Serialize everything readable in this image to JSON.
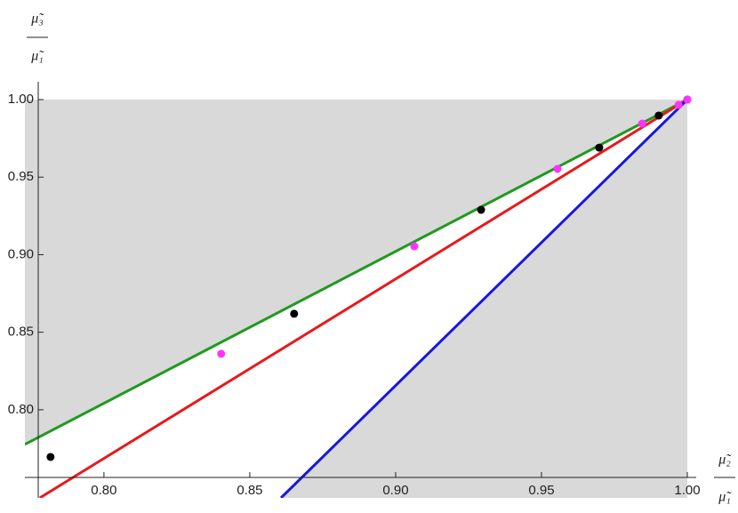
{
  "chart_data": {
    "type": "line",
    "xlabel": {
      "numerator": "μ̃₂",
      "denominator": "μ̃₁"
    },
    "ylabel": {
      "numerator": "μ̃₃",
      "denominator": "μ̃₁"
    },
    "xlim": [
      0.7729,
      1.0
    ],
    "ylim": [
      0.7432,
      1.0
    ],
    "xticks": [
      {
        "value": 0.8,
        "label": "0.80"
      },
      {
        "value": 0.85,
        "label": "0.85"
      },
      {
        "value": 0.9,
        "label": "0.90"
      },
      {
        "value": 0.95,
        "label": "0.95"
      },
      {
        "value": 1.0,
        "label": "1.00"
      }
    ],
    "yticks": [
      {
        "value": 0.8,
        "label": "0.80"
      },
      {
        "value": 0.85,
        "label": "0.85"
      },
      {
        "value": 0.9,
        "label": "0.90"
      },
      {
        "value": 0.95,
        "label": "0.95"
      },
      {
        "value": 1.0,
        "label": "1.00"
      }
    ],
    "shade_color": "#d9d9d9",
    "series": [
      {
        "type": "line",
        "color": "#1e9a1e",
        "x": [
          0.7729,
          1.0
        ],
        "values": [
          0.7777,
          1.0
        ]
      },
      {
        "type": "line",
        "color": "#e8191a",
        "x": [
          0.778,
          1.0
        ],
        "values": [
          0.7432,
          1.0
        ]
      },
      {
        "type": "line",
        "color": "#1717e0",
        "x": [
          0.8607,
          1.0
        ],
        "values": [
          0.7432,
          1.0
        ]
      },
      {
        "type": "scatter",
        "color": "#000000",
        "x": [
          0.7817,
          0.8652,
          0.9293,
          0.9698,
          0.9902,
          1.0
        ],
        "values": [
          0.7696,
          0.8619,
          0.9289,
          0.969,
          0.9897,
          1.0
        ]
      },
      {
        "type": "scatter",
        "color": "#ff33ff",
        "x": [
          0.8402,
          0.9064,
          0.9555,
          0.9845,
          0.997,
          1.0
        ],
        "values": [
          0.8361,
          0.9054,
          0.9553,
          0.9845,
          0.9966,
          1.0
        ]
      }
    ]
  }
}
